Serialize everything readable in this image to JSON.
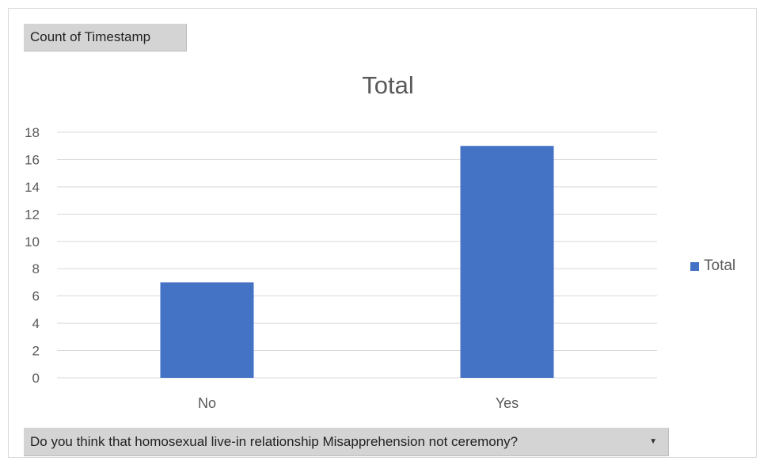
{
  "pivot": {
    "value_field_label": "Count of Timestamp",
    "axis_field_label": "Do you think that homosexual live-in relationship Misapprehension not ceremony?",
    "dropdown_icon": "chevron-down-icon"
  },
  "chart_data": {
    "type": "bar",
    "title": "Total",
    "categories": [
      "No",
      "Yes"
    ],
    "series": [
      {
        "name": "Total",
        "values": [
          7,
          17
        ],
        "color": "#4472c4"
      }
    ],
    "ylim": [
      0,
      18
    ],
    "yticks": [
      "0",
      "2",
      "4",
      "6",
      "8",
      "10",
      "12",
      "14",
      "16",
      "18"
    ],
    "ytick_values": [
      0,
      2,
      4,
      6,
      8,
      10,
      12,
      14,
      16,
      18
    ],
    "grid": true,
    "legend_position": "right"
  }
}
